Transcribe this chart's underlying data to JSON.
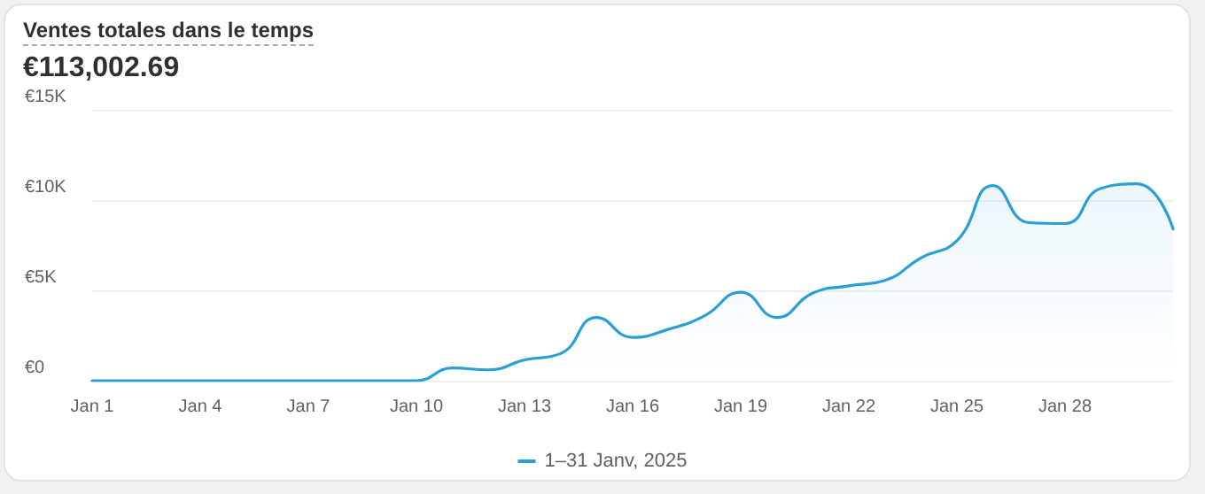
{
  "chart_data": {
    "type": "area",
    "title": "Ventes totales dans le temps",
    "subtitle": "€113,002.69",
    "categories": [
      "Jan 1",
      null,
      null,
      "Jan 4",
      null,
      null,
      "Jan 7",
      null,
      null,
      "Jan 10",
      null,
      null,
      "Jan 13",
      null,
      null,
      "Jan 16",
      null,
      null,
      "Jan 19",
      null,
      null,
      "Jan 22",
      null,
      null,
      "Jan 25",
      null,
      null,
      "Jan 28",
      null,
      null,
      null
    ],
    "series": [
      {
        "name": "1–31 Janv, 2025",
        "color": "#2a9fd6",
        "values": [
          0,
          0,
          0,
          0,
          0,
          0,
          0,
          0,
          0,
          0,
          700,
          600,
          1150,
          1500,
          3500,
          2400,
          2850,
          3600,
          4900,
          3500,
          4850,
          5250,
          5550,
          6800,
          7750,
          10800,
          8750,
          8700,
          10650,
          10900,
          8400
        ]
      }
    ],
    "ylim": [
      0,
      15000
    ],
    "yticks": [
      {
        "value": 0,
        "label": "€0"
      },
      {
        "value": 5000,
        "label": "€5K"
      },
      {
        "value": 10000,
        "label": "€10K"
      },
      {
        "value": 15000,
        "label": "€15K"
      }
    ],
    "grid": "y",
    "legend": "bottom",
    "marker": "none",
    "line_style": "solid"
  }
}
